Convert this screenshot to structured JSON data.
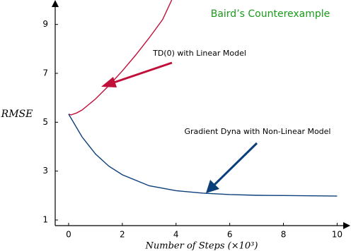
{
  "chart_data": {
    "type": "line",
    "title": "Baird’s Counterexample",
    "xlabel": "Number of Steps (×10³)",
    "ylabel": "RMSE",
    "xlim": [
      -0.5,
      10.2
    ],
    "ylim": [
      0.77,
      10
    ],
    "xticks": [
      0,
      2,
      4,
      6,
      8,
      10
    ],
    "yticks": [
      1,
      3,
      5,
      7,
      9
    ],
    "title_color": "#1a9a1a",
    "series": [
      {
        "name": "TD(0) with Linear Model",
        "color": "#c0103a",
        "x": [
          0,
          0.1,
          0.3,
          0.5,
          1,
          1.5,
          2,
          2.5,
          3,
          3.5,
          3.84
        ],
        "values": [
          5.33,
          5.3,
          5.38,
          5.5,
          5.95,
          6.5,
          7.1,
          7.75,
          8.45,
          9.2,
          10
        ]
      },
      {
        "name": "Gradient Dyna with Non-Linear Model",
        "color": "#0b3f7a",
        "x": [
          0,
          0.5,
          1,
          1.5,
          2,
          3,
          4,
          5,
          6,
          7,
          8,
          10
        ],
        "values": [
          5.33,
          4.4,
          3.7,
          3.2,
          2.85,
          2.4,
          2.2,
          2.1,
          2.04,
          2.01,
          2.0,
          1.98
        ]
      }
    ]
  }
}
